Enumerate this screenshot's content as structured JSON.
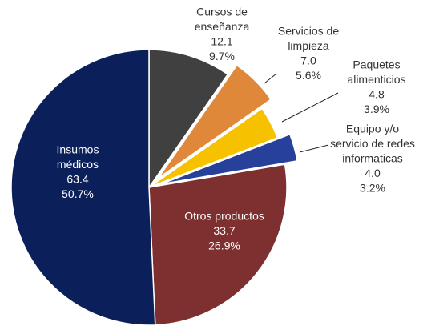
{
  "chart_data": {
    "type": "pie",
    "categories": [
      [
        "Cursos de",
        "enseñanza"
      ],
      [
        "Servicios de",
        "limpieza"
      ],
      [
        "Paquetes",
        "alimenticios"
      ],
      [
        "Equipo y/o",
        "servicio de redes",
        "informaticas"
      ],
      [
        "Otros productos"
      ],
      [
        "Insumos",
        "médicos"
      ]
    ],
    "values": [
      12.1,
      7.0,
      4.8,
      4.0,
      33.7,
      63.4
    ],
    "value_labels": [
      "12.1",
      "7.0",
      "4.8",
      "4.0",
      "33.7",
      "63.4"
    ],
    "percent_labels": [
      "9.7%",
      "5.6%",
      "3.9%",
      "3.2%",
      "26.9%",
      "50.7%"
    ],
    "colors": [
      "#404040",
      "#e0883a",
      "#f6c200",
      "#27409a",
      "#7e2f2f",
      "#0b1f5b"
    ],
    "exploded": [
      false,
      true,
      false,
      true,
      false,
      false
    ]
  }
}
